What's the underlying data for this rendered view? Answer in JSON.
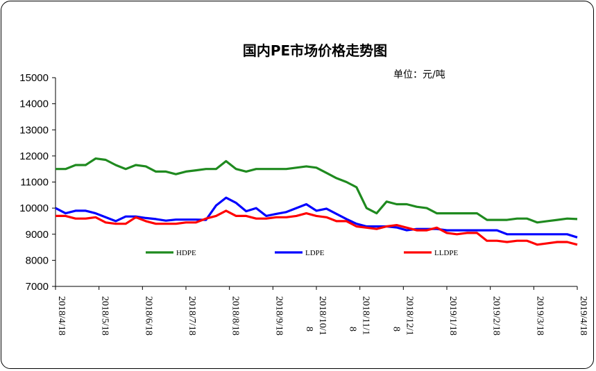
{
  "chart_data": {
    "type": "line",
    "title": "国内PE市场价格走势图",
    "unit_label": "单位：元/吨",
    "ylim": [
      7000,
      15000
    ],
    "y_ticks": [
      "15000",
      "14000",
      "13000",
      "12000",
      "11000",
      "10000",
      "9000",
      "8000",
      "7000"
    ],
    "grid": false,
    "legend_placement": "bottom-inside",
    "x_tick_labels": [
      {
        "label": "2018/4/18",
        "extra": ""
      },
      {
        "label": "2018/5/18",
        "extra": ""
      },
      {
        "label": "2018/6/18",
        "extra": ""
      },
      {
        "label": "2018/7/18",
        "extra": ""
      },
      {
        "label": "2018/8/18",
        "extra": ""
      },
      {
        "label": "2018/9/18",
        "extra": ""
      },
      {
        "label": "2018/10/1",
        "extra": "8"
      },
      {
        "label": "2018/11/1",
        "extra": "8"
      },
      {
        "label": "2018/12/1",
        "extra": "8"
      },
      {
        "label": "2019/1/18",
        "extra": ""
      },
      {
        "label": "2019/2/18",
        "extra": ""
      },
      {
        "label": "2019/3/18",
        "extra": ""
      },
      {
        "label": "2019/4/18",
        "extra": ""
      }
    ],
    "x_dates": [
      "2018-04-18",
      "2018-04-25",
      "2018-05-02",
      "2018-05-09",
      "2018-05-16",
      "2018-05-23",
      "2018-05-30",
      "2018-06-06",
      "2018-06-13",
      "2018-06-20",
      "2018-06-27",
      "2018-07-04",
      "2018-07-11",
      "2018-07-18",
      "2018-07-25",
      "2018-08-01",
      "2018-08-08",
      "2018-08-15",
      "2018-08-22",
      "2018-08-29",
      "2018-09-05",
      "2018-09-12",
      "2018-09-19",
      "2018-09-26",
      "2018-10-03",
      "2018-10-10",
      "2018-10-17",
      "2018-10-24",
      "2018-10-31",
      "2018-11-07",
      "2018-11-14",
      "2018-11-21",
      "2018-11-28",
      "2018-12-05",
      "2018-12-12",
      "2018-12-19",
      "2018-12-26",
      "2019-01-02",
      "2019-01-09",
      "2019-01-16",
      "2019-01-23",
      "2019-01-30",
      "2019-02-06",
      "2019-02-13",
      "2019-02-20",
      "2019-02-27",
      "2019-03-06",
      "2019-03-13",
      "2019-03-20",
      "2019-03-27",
      "2019-04-03",
      "2019-04-10",
      "2019-04-17"
    ],
    "series": [
      {
        "name": "HDPE",
        "color": "#1f8a1f",
        "values": [
          11500,
          11500,
          11650,
          11650,
          11900,
          11850,
          11650,
          11500,
          11650,
          11600,
          11400,
          11400,
          11300,
          11400,
          11450,
          11500,
          11500,
          11800,
          11500,
          11400,
          11500,
          11500,
          11500,
          11500,
          11550,
          11600,
          11550,
          11350,
          11150,
          11000,
          10800,
          10000,
          9800,
          10250,
          10150,
          10150,
          10050,
          10000,
          9800,
          9800,
          9800,
          9800,
          9800,
          9550,
          9550,
          9550,
          9600,
          9600,
          9450,
          9500,
          9550,
          9600,
          9580
        ]
      },
      {
        "name": "LDPE",
        "color": "#0000ff",
        "values": [
          10000,
          9800,
          9900,
          9900,
          9800,
          9650,
          9500,
          9680,
          9680,
          9620,
          9580,
          9520,
          9560,
          9560,
          9560,
          9550,
          10100,
          10400,
          10200,
          9880,
          10000,
          9700,
          9780,
          9850,
          10000,
          10150,
          9900,
          9980,
          9780,
          9580,
          9400,
          9300,
          9300,
          9300,
          9260,
          9150,
          9200,
          9200,
          9200,
          9150,
          9150,
          9150,
          9150,
          9150,
          9150,
          9000,
          9000,
          9000,
          9000,
          9000,
          9000,
          9000,
          8880
        ]
      },
      {
        "name": "LLDPE",
        "color": "#ff0000",
        "values": [
          9700,
          9700,
          9600,
          9600,
          9650,
          9450,
          9400,
          9400,
          9650,
          9500,
          9400,
          9400,
          9400,
          9450,
          9450,
          9600,
          9700,
          9900,
          9700,
          9700,
          9600,
          9600,
          9650,
          9650,
          9700,
          9800,
          9700,
          9650,
          9500,
          9500,
          9300,
          9250,
          9200,
          9300,
          9350,
          9250,
          9150,
          9150,
          9250,
          9050,
          9000,
          9050,
          9050,
          8750,
          8750,
          8700,
          8750,
          8750,
          8600,
          8650,
          8700,
          8700,
          8600
        ]
      }
    ]
  }
}
